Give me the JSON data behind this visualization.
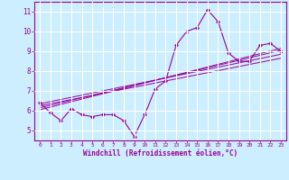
{
  "title": "",
  "xlabel": "Windchill (Refroidissement éolien,°C)",
  "ylabel": "",
  "background_color": "#cceeff",
  "line_color": "#990099",
  "grid_color": "#ffffff",
  "xlim": [
    -0.5,
    23.5
  ],
  "ylim": [
    4.5,
    11.5
  ],
  "yticks": [
    5,
    6,
    7,
    8,
    9,
    10,
    11
  ],
  "xticks": [
    0,
    1,
    2,
    3,
    4,
    5,
    6,
    7,
    8,
    9,
    10,
    11,
    12,
    13,
    14,
    15,
    16,
    17,
    18,
    19,
    20,
    21,
    22,
    23
  ],
  "main_x": [
    0,
    1,
    2,
    3,
    4,
    5,
    6,
    7,
    8,
    9,
    10,
    11,
    12,
    13,
    14,
    15,
    16,
    17,
    18,
    19,
    20,
    21,
    22,
    23
  ],
  "main_y": [
    6.4,
    5.9,
    5.5,
    6.1,
    5.8,
    5.7,
    5.8,
    5.8,
    5.5,
    4.7,
    5.8,
    7.1,
    7.5,
    9.3,
    10.0,
    10.2,
    11.1,
    10.5,
    8.9,
    8.5,
    8.5,
    9.3,
    9.4,
    9.0
  ],
  "line1_x": [
    0,
    23
  ],
  "line1_y": [
    6.35,
    8.85
  ],
  "line2_x": [
    0,
    23
  ],
  "line2_y": [
    6.15,
    9.05
  ],
  "line3_x": [
    0,
    23
  ],
  "line3_y": [
    6.25,
    8.65
  ],
  "line4_x": [
    0,
    23
  ],
  "line4_y": [
    6.05,
    9.15
  ]
}
